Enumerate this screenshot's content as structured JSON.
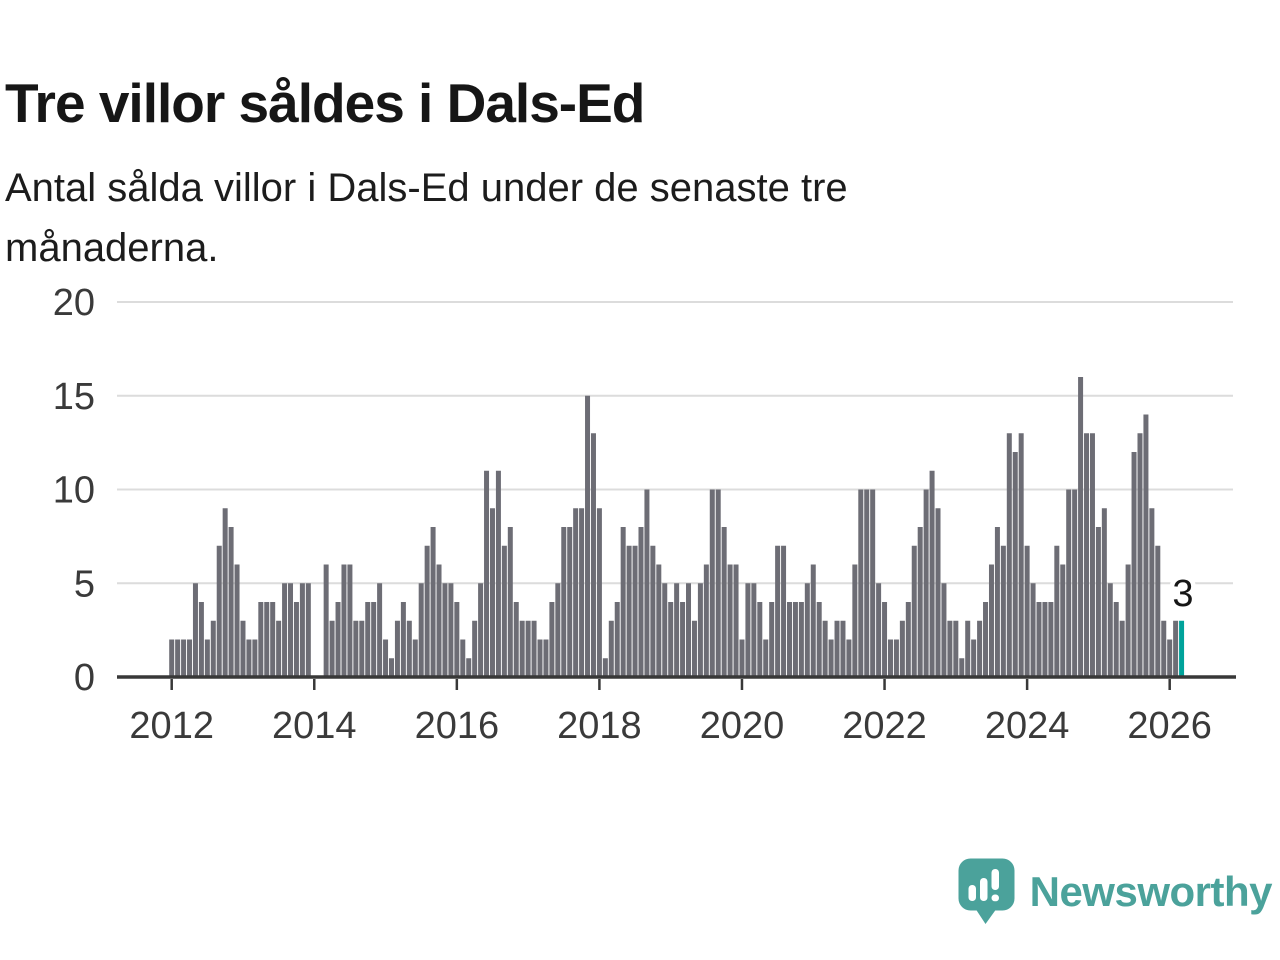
{
  "header": {
    "title": "Tre villor såldes i Dals-Ed",
    "subtitle_lines": [
      "Antal sålda villor i Dals-Ed under de senaste tre",
      "månaderna."
    ]
  },
  "annotation": {
    "label": "3"
  },
  "branding": {
    "wordmark": "Newsworthy",
    "icon": "newsworthy-speech-bubble-chart-icon",
    "color": "#4BA29B"
  },
  "chart_data": {
    "type": "bar",
    "title": "Tre villor såldes i Dals-Ed",
    "subtitle": "Antal sålda villor i Dals-Ed under de senaste tre månaderna.",
    "x_start": "2012-01",
    "x_end": "2026-03",
    "x_tick_labels": [
      "2012",
      "2014",
      "2016",
      "2018",
      "2020",
      "2022",
      "2024",
      "2026"
    ],
    "ylim": [
      0,
      20
    ],
    "y_ticks": [
      0,
      5,
      10,
      15,
      20
    ],
    "grid": true,
    "legend": false,
    "bar_color": "#6D6D75",
    "highlight_color": "#00A39B",
    "gridline_color": "#DCDCDC",
    "axis_color": "#383838",
    "highlight": {
      "month": "2026-03",
      "value": 3,
      "label": "3"
    },
    "values": [
      2,
      2,
      2,
      2,
      5,
      4,
      2,
      3,
      7,
      9,
      8,
      6,
      3,
      2,
      2,
      4,
      4,
      4,
      3,
      5,
      5,
      4,
      5,
      5,
      0,
      0,
      6,
      3,
      4,
      6,
      6,
      3,
      3,
      4,
      4,
      5,
      2,
      1,
      3,
      4,
      3,
      2,
      5,
      7,
      8,
      6,
      5,
      5,
      4,
      2,
      1,
      3,
      5,
      11,
      9,
      11,
      7,
      8,
      4,
      3,
      3,
      3,
      2,
      2,
      4,
      5,
      8,
      8,
      9,
      9,
      15,
      13,
      9,
      1,
      3,
      4,
      8,
      7,
      7,
      8,
      10,
      7,
      6,
      5,
      4,
      5,
      4,
      5,
      3,
      5,
      6,
      10,
      10,
      8,
      6,
      6,
      2,
      5,
      5,
      4,
      2,
      4,
      7,
      7,
      4,
      4,
      4,
      5,
      6,
      4,
      3,
      2,
      3,
      3,
      2,
      6,
      10,
      10,
      10,
      5,
      4,
      2,
      2,
      3,
      4,
      7,
      8,
      10,
      11,
      9,
      5,
      3,
      3,
      1,
      3,
      2,
      3,
      4,
      6,
      8,
      7,
      13,
      12,
      13,
      7,
      5,
      4,
      4,
      4,
      7,
      6,
      10,
      10,
      16,
      13,
      13,
      8,
      9,
      5,
      4,
      3,
      6,
      12,
      13,
      14,
      9,
      7,
      3,
      2,
      3,
      3
    ]
  }
}
